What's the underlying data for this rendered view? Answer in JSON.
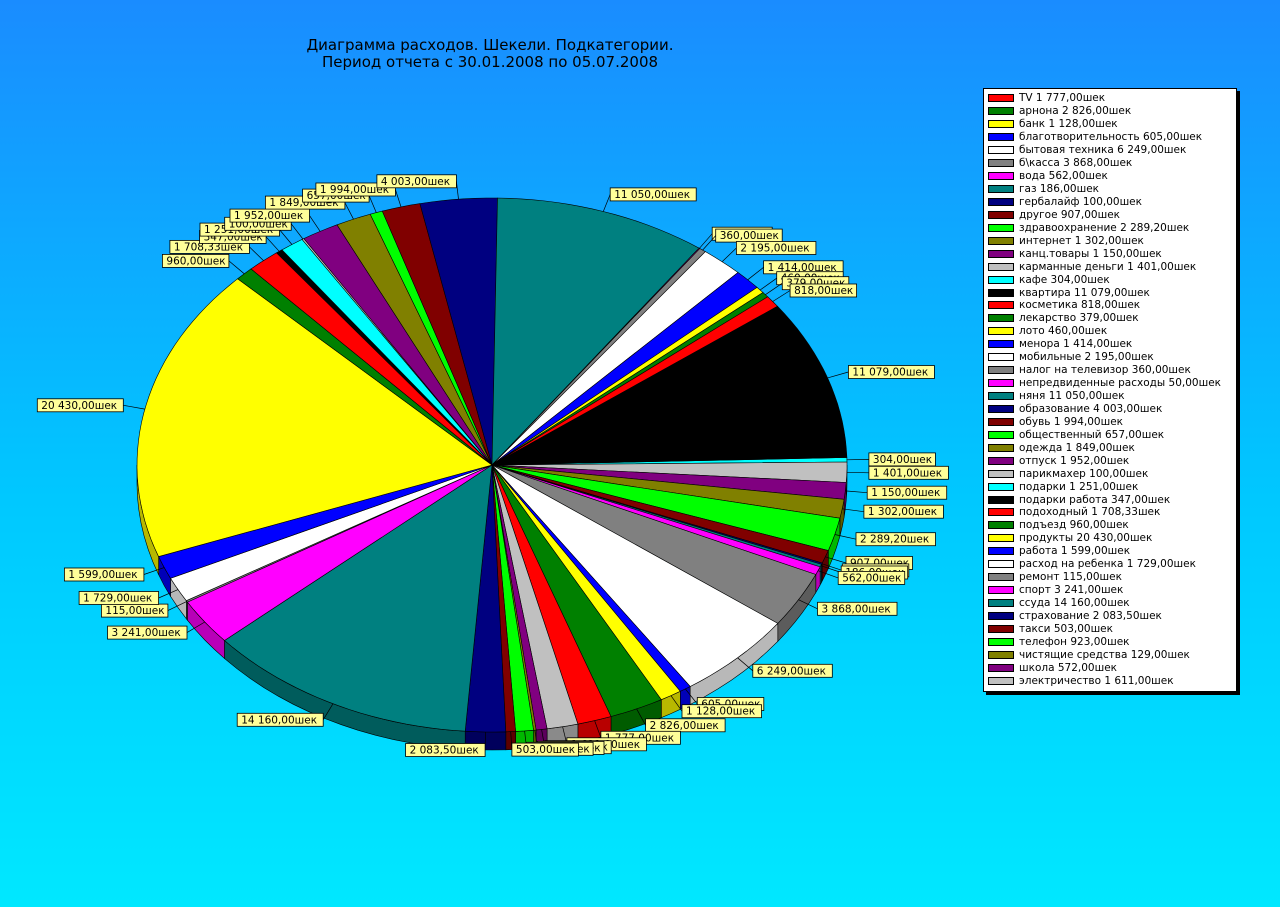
{
  "title": {
    "line1": "Диаграмма расходов. Шекели. Подкатегории.",
    "line2": "Период отчета с 30.01.2008 по 05.07.2008"
  },
  "chart_data": {
    "type": "pie",
    "series": [
      {
        "name": "TV",
        "value": 1777.0,
        "label": "1 777,00шек",
        "color": "#ff0000"
      },
      {
        "name": "арнона",
        "value": 2826.0,
        "label": "2 826,00шек",
        "color": "#008000"
      },
      {
        "name": "банк",
        "value": 1128.0,
        "label": "1 128,00шек",
        "color": "#ffff00"
      },
      {
        "name": "благотворительность",
        "value": 605.0,
        "label": "605,00шек",
        "color": "#0000ff"
      },
      {
        "name": "бытовая техника",
        "value": 6249.0,
        "label": "6 249,00шек",
        "color": "#ffffff"
      },
      {
        "name": "б\\касса",
        "value": 3868.0,
        "label": "3 868,00шек",
        "color": "#808080"
      },
      {
        "name": "вода",
        "value": 562.0,
        "label": "562,00шек",
        "color": "#ff00ff"
      },
      {
        "name": "газ",
        "value": 186.0,
        "label": "186,00шек",
        "color": "#008080"
      },
      {
        "name": "гербалайф",
        "value": 100.0,
        "label": "100,00шек",
        "color": "#000080"
      },
      {
        "name": "другое",
        "value": 907.0,
        "label": "907,00шек",
        "color": "#800000"
      },
      {
        "name": "здравоохранение",
        "value": 2289.2,
        "label": "2 289,20шек",
        "color": "#00ff00"
      },
      {
        "name": "интернет",
        "value": 1302.0,
        "label": "1 302,00шек",
        "color": "#808000"
      },
      {
        "name": "канц.товары",
        "value": 1150.0,
        "label": "1 150,00шек",
        "color": "#800080"
      },
      {
        "name": "карманные деньги",
        "value": 1401.0,
        "label": "1 401,00шек",
        "color": "#c0c0c0"
      },
      {
        "name": "кафе",
        "value": 304.0,
        "label": "304,00шек",
        "color": "#00ffff"
      },
      {
        "name": "квартира",
        "value": 11079.0,
        "label": "11 079,00шек",
        "color": "#000000"
      },
      {
        "name": "косметика",
        "value": 818.0,
        "label": "818,00шек",
        "color": "#ff0000"
      },
      {
        "name": "лекарство",
        "value": 379.0,
        "label": "379,00шек",
        "color": "#008000"
      },
      {
        "name": "лото",
        "value": 460.0,
        "label": "460,00шек",
        "color": "#ffff00"
      },
      {
        "name": "менора",
        "value": 1414.0,
        "label": "1 414,00шек",
        "color": "#0000ff"
      },
      {
        "name": "мобильные",
        "value": 2195.0,
        "label": "2 195,00шек",
        "color": "#ffffff"
      },
      {
        "name": "налог на телевизор",
        "value": 360.0,
        "label": "360,00шек",
        "color": "#808080"
      },
      {
        "name": "непредвиденные расходы",
        "value": 50.0,
        "label": "50,00шек",
        "color": "#ff00ff"
      },
      {
        "name": "няня",
        "value": 11050.0,
        "label": "11 050,00шек",
        "color": "#008080"
      },
      {
        "name": "образование",
        "value": 4003.0,
        "label": "4 003,00шек",
        "color": "#000080"
      },
      {
        "name": "обувь",
        "value": 1994.0,
        "label": "1 994,00шек",
        "color": "#800000"
      },
      {
        "name": "общественный",
        "value": 657.0,
        "label": "657,00шек",
        "color": "#00ff00"
      },
      {
        "name": "одежда",
        "value": 1849.0,
        "label": "1 849,00шек",
        "color": "#808000"
      },
      {
        "name": "отпуск",
        "value": 1952.0,
        "label": "1 952,00шек",
        "color": "#800080"
      },
      {
        "name": "парикмахер",
        "value": 100.0,
        "label": "100,00шек",
        "color": "#c0c0c0"
      },
      {
        "name": "подарки",
        "value": 1251.0,
        "label": "1 251,00шек",
        "color": "#00ffff"
      },
      {
        "name": "подарки работа",
        "value": 347.0,
        "label": "347,00шек",
        "color": "#000000"
      },
      {
        "name": "подоходный",
        "value": 1708.33,
        "label": "1 708,33шек",
        "color": "#ff0000"
      },
      {
        "name": "подъезд",
        "value": 960.0,
        "label": "960,00шек",
        "color": "#008000"
      },
      {
        "name": "продукты",
        "value": 20430.0,
        "label": "20 430,00шек",
        "color": "#ffff00"
      },
      {
        "name": "работа",
        "value": 1599.0,
        "label": "1 599,00шек",
        "color": "#0000ff"
      },
      {
        "name": "расход на ребенка",
        "value": 1729.0,
        "label": "1 729,00шек",
        "color": "#ffffff"
      },
      {
        "name": "ремонт",
        "value": 115.0,
        "label": "115,00шек",
        "color": "#808080"
      },
      {
        "name": "спорт",
        "value": 3241.0,
        "label": "3 241,00шек",
        "color": "#ff00ff"
      },
      {
        "name": "ссуда",
        "value": 14160.0,
        "label": "14 160,00шек",
        "color": "#008080"
      },
      {
        "name": "страхование",
        "value": 2083.5,
        "label": "2 083,50шек",
        "color": "#000080"
      },
      {
        "name": "такси",
        "value": 503.0,
        "label": "503,00шек",
        "color": "#800000"
      },
      {
        "name": "телефон",
        "value": 923.0,
        "label": "923,00шек",
        "color": "#00ff00"
      },
      {
        "name": "чистящие средства",
        "value": 129.0,
        "label": "129,00шек",
        "color": "#808000"
      },
      {
        "name": "школа",
        "value": 572.0,
        "label": "572,00шек",
        "color": "#800080"
      },
      {
        "name": "электричество",
        "value": 1611.0,
        "label": "1 611,00шек",
        "color": "#c0c0c0"
      }
    ],
    "slice_order": [
      "кафе",
      "карманные деньги",
      "канц.товары",
      "интернет",
      "здравоохранение",
      "другое",
      "гербалайф",
      "газ",
      "вода",
      "б\\касса",
      "бытовая техника",
      "благотворительность",
      "банк",
      "арнона",
      "TV",
      "электричество",
      "школа",
      "чистящие средства",
      "телефон",
      "такси",
      "страхование",
      "ссуда",
      "спорт",
      "ремонт",
      "расход на ребенка",
      "работа",
      "продукты",
      "подъезд",
      "подоходный",
      "подарки работа",
      "подарки",
      "парикмахер",
      "отпуск",
      "одежда",
      "общественный",
      "обувь",
      "образование",
      "няня",
      "непредвиденные расходы",
      "налог на телевизор",
      "мобильные",
      "менора",
      "лото",
      "лекарство",
      "косметика",
      "квартира"
    ],
    "legend_position": "right"
  }
}
